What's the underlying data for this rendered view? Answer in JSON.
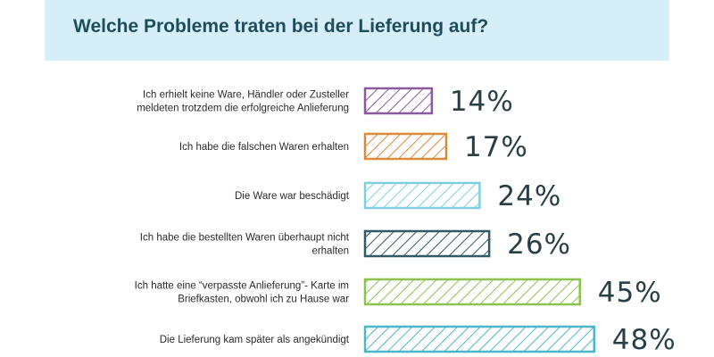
{
  "title": "Welche Probleme traten bei der Lieferung auf?",
  "colors": {
    "header_bg": "#d6eef8",
    "title_text": "#1e4d5c"
  },
  "chart_data": {
    "type": "bar",
    "orientation": "horizontal",
    "title": "Welche Probleme traten bei der Lieferung auf?",
    "unit": "%",
    "categories": [
      "Ich erhielt keine Ware, Händler oder Zusteller meldeten trotzdem die erfolgreiche Anlieferung",
      "Ich habe die falschen Waren erhalten",
      "Die Ware war beschädigt",
      "Ich habe die bestellten Waren überhaupt nicht erhalten",
      "Ich hatte eine “verpasste Anlieferung”- Karte im Briefkasten, obwohl ich zu Hause war",
      "Die Lieferung kam später als angekündigt"
    ],
    "category_lines": [
      [
        "Ich erhielt keine Ware, Händler oder Zusteller",
        "meldeten trotzdem die erfolgreiche Anlieferung"
      ],
      [
        "Ich habe die falschen Waren erhalten"
      ],
      [
        "Die Ware war beschädigt"
      ],
      [
        "Ich habe die bestellten Waren überhaupt nicht",
        "erhalten"
      ],
      [
        "Ich hatte eine “verpasste Anlieferung”- Karte im",
        "Briefkasten, obwohl ich zu Hause war"
      ],
      [
        "Die Lieferung kam später als angekündigt"
      ]
    ],
    "values": [
      14,
      17,
      24,
      26,
      45,
      48
    ],
    "value_labels": [
      "14%",
      "17%",
      "24%",
      "26%",
      "45%",
      "48%"
    ],
    "bar_colors": [
      "#8a5a9e",
      "#d98a3c",
      "#7fd0dc",
      "#2f5a66",
      "#8ec24f",
      "#4bb6c8"
    ],
    "bar_fill": "hatched",
    "grid": false,
    "legend": "none"
  }
}
